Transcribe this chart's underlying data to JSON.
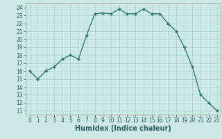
{
  "x": [
    0,
    1,
    2,
    3,
    4,
    5,
    6,
    7,
    8,
    9,
    10,
    11,
    12,
    13,
    14,
    15,
    16,
    17,
    18,
    19,
    20,
    21,
    22,
    23
  ],
  "y": [
    16.0,
    15.0,
    16.0,
    16.5,
    17.5,
    18.0,
    17.5,
    20.5,
    23.2,
    23.3,
    23.2,
    23.8,
    23.2,
    23.2,
    23.8,
    23.2,
    23.2,
    22.0,
    21.0,
    19.0,
    16.5,
    13.0,
    12.0,
    11.0
  ],
  "line_color": "#2e7d6e",
  "marker": "D",
  "marker_size": 2.0,
  "bg_color": "#cce9e7",
  "grid_color": "#aad4d0",
  "xlabel": "Humidex (Indice chaleur)",
  "ylim": [
    10.5,
    24.5
  ],
  "xlim": [
    -0.5,
    23.5
  ],
  "yticks": [
    11,
    12,
    13,
    14,
    15,
    16,
    17,
    18,
    19,
    20,
    21,
    22,
    23,
    24
  ],
  "xticks": [
    0,
    1,
    2,
    3,
    4,
    5,
    6,
    7,
    8,
    9,
    10,
    11,
    12,
    13,
    14,
    15,
    16,
    17,
    18,
    19,
    20,
    21,
    22,
    23
  ],
  "tick_fontsize": 5.5,
  "xlabel_fontsize": 7.0,
  "linewidth": 1.0,
  "spine_color": "#888888"
}
